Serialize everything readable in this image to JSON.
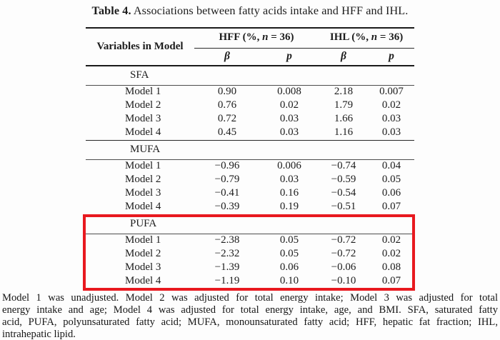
{
  "title": {
    "label": "Table 4.",
    "text": " Associations between fatty acids intake and HFF and IHL."
  },
  "highlight_color": "#e8191f",
  "table": {
    "row_header": "Variables in Model",
    "col_groups": [
      {
        "pre": "HFF (%, ",
        "n": "n",
        "post": " = 36)"
      },
      {
        "pre": "IHL (%, ",
        "n": "n",
        "post": " = 36)"
      }
    ],
    "sub_headers": [
      "β",
      "p",
      "β",
      "p"
    ],
    "sections": [
      {
        "name": "SFA",
        "highlighted": false,
        "rows": [
          {
            "label": "Model 1",
            "values": [
              "0.90",
              "0.008",
              "2.18",
              "0.007"
            ]
          },
          {
            "label": "Model 2",
            "values": [
              "0.76",
              "0.02",
              "1.79",
              "0.02"
            ]
          },
          {
            "label": "Model 3",
            "values": [
              "0.72",
              "0.03",
              "1.66",
              "0.03"
            ]
          },
          {
            "label": "Model 4",
            "values": [
              "0.45",
              "0.03",
              "1.16",
              "0.03"
            ]
          }
        ]
      },
      {
        "name": "MUFA",
        "highlighted": false,
        "rows": [
          {
            "label": "Model 1",
            "values": [
              "−0.96",
              "0.006",
              "−0.74",
              "0.04"
            ]
          },
          {
            "label": "Model 2",
            "values": [
              "−0.79",
              "0.03",
              "−0.59",
              "0.05"
            ]
          },
          {
            "label": "Model 3",
            "values": [
              "−0.41",
              "0.16",
              "−0.54",
              "0.06"
            ]
          },
          {
            "label": "Model 4",
            "values": [
              "−0.39",
              "0.19",
              "−0.51",
              "0.07"
            ]
          }
        ]
      },
      {
        "name": "PUFA",
        "highlighted": true,
        "rows": [
          {
            "label": "Model 1",
            "values": [
              "−2.38",
              "0.05",
              "−0.72",
              "0.02"
            ]
          },
          {
            "label": "Model 2",
            "values": [
              "−2.32",
              "0.05",
              "−0.72",
              "0.02"
            ]
          },
          {
            "label": "Model 3",
            "values": [
              "−1.39",
              "0.06",
              "−0.06",
              "0.08"
            ]
          },
          {
            "label": "Model 4",
            "values": [
              "−1.19",
              "0.10",
              "−0.10",
              "0.07"
            ]
          }
        ]
      }
    ]
  },
  "footnote": {
    "lines": [
      "Model 1 was unadjusted.  Model 2 was adjusted for total energy intake; Model 3 was adjusted for total",
      "energy intake and age; Model 4 was adjusted for total energy intake, age, and BMI. SFA, saturated fatty",
      "acid, PUFA, polyunsaturated fatty acid; MUFA, monounsaturated fatty acid; HFF, hepatic fat fraction; IHL,",
      "intrahepatic lipid."
    ]
  }
}
